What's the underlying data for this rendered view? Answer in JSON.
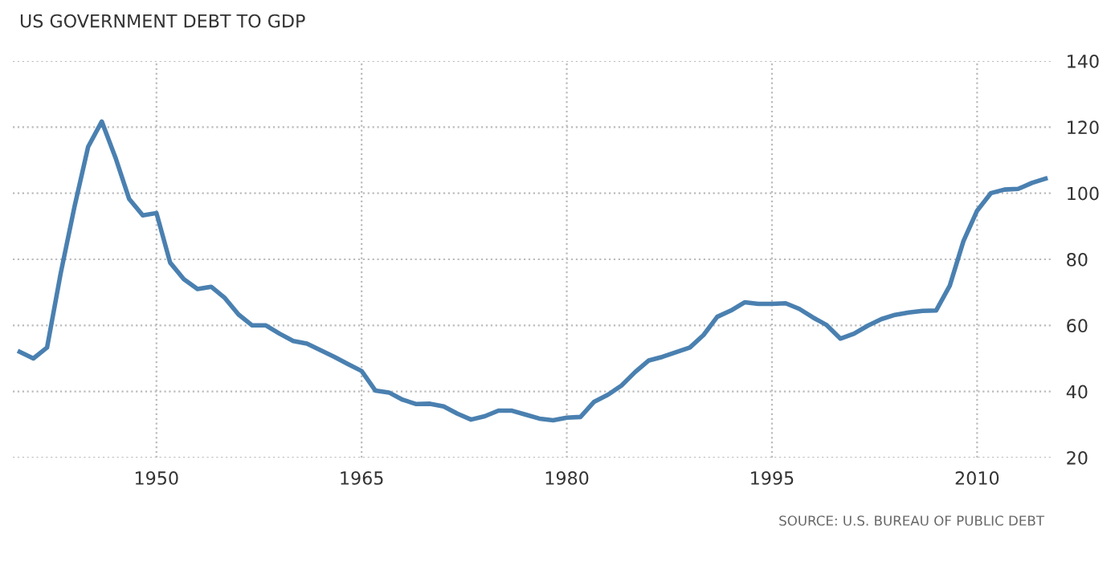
{
  "chart_data": {
    "type": "line",
    "title": "US GOVERNMENT DEBT TO GDP",
    "x": [
      1940,
      1941,
      1942,
      1943,
      1944,
      1945,
      1946,
      1947,
      1948,
      1949,
      1950,
      1951,
      1952,
      1953,
      1954,
      1955,
      1956,
      1957,
      1958,
      1959,
      1960,
      1961,
      1962,
      1963,
      1964,
      1965,
      1966,
      1967,
      1968,
      1969,
      1970,
      1971,
      1972,
      1973,
      1974,
      1975,
      1976,
      1977,
      1978,
      1979,
      1980,
      1981,
      1982,
      1983,
      1984,
      1985,
      1986,
      1987,
      1988,
      1989,
      1990,
      1991,
      1992,
      1993,
      1994,
      1995,
      1996,
      1997,
      1998,
      1999,
      2000,
      2001,
      2002,
      2003,
      2004,
      2005,
      2006,
      2007,
      2008,
      2009,
      2010,
      2011,
      2012,
      2013,
      2014,
      2015
    ],
    "series": [
      {
        "color": "#4a80b0",
        "values": [
          52,
          50,
          53.3,
          75.8,
          95.8,
          114,
          121.7,
          110.8,
          98.3,
          93.3,
          94,
          79,
          74,
          71,
          71.7,
          68.3,
          63.3,
          60,
          60,
          57.5,
          55.3,
          54.5,
          52.5,
          50.5,
          48.3,
          46.2,
          40.3,
          39.7,
          37.5,
          36.2,
          36.3,
          35.5,
          33.3,
          31.5,
          32.5,
          34.2,
          34.2,
          33,
          31.8,
          31.3,
          32.1,
          32.3,
          36.9,
          39,
          41.8,
          45.9,
          49.4,
          50.5,
          51.9,
          53.3,
          57.1,
          62.6,
          64.5,
          67,
          66.5,
          66.5,
          66.7,
          65,
          62.4,
          60.1,
          56,
          57.5,
          59.9,
          61.9,
          63.2,
          63.9,
          64.4,
          64.5,
          72,
          85.5,
          94.7,
          100,
          101.1,
          101.3,
          103.1,
          104.4
        ]
      }
    ],
    "xlim": [
      1939.5,
      2015.5
    ],
    "ylim": [
      20,
      140
    ],
    "xticks": [
      1950,
      1965,
      1980,
      1995,
      2010
    ],
    "yticks": [
      20,
      40,
      60,
      80,
      100,
      120,
      140
    ],
    "grid": true,
    "legend": false,
    "marker": "none",
    "line_style": "solid",
    "annotations": [
      "SOURCE: U.S. BUREAU OF PUBLIC DEBT"
    ]
  }
}
